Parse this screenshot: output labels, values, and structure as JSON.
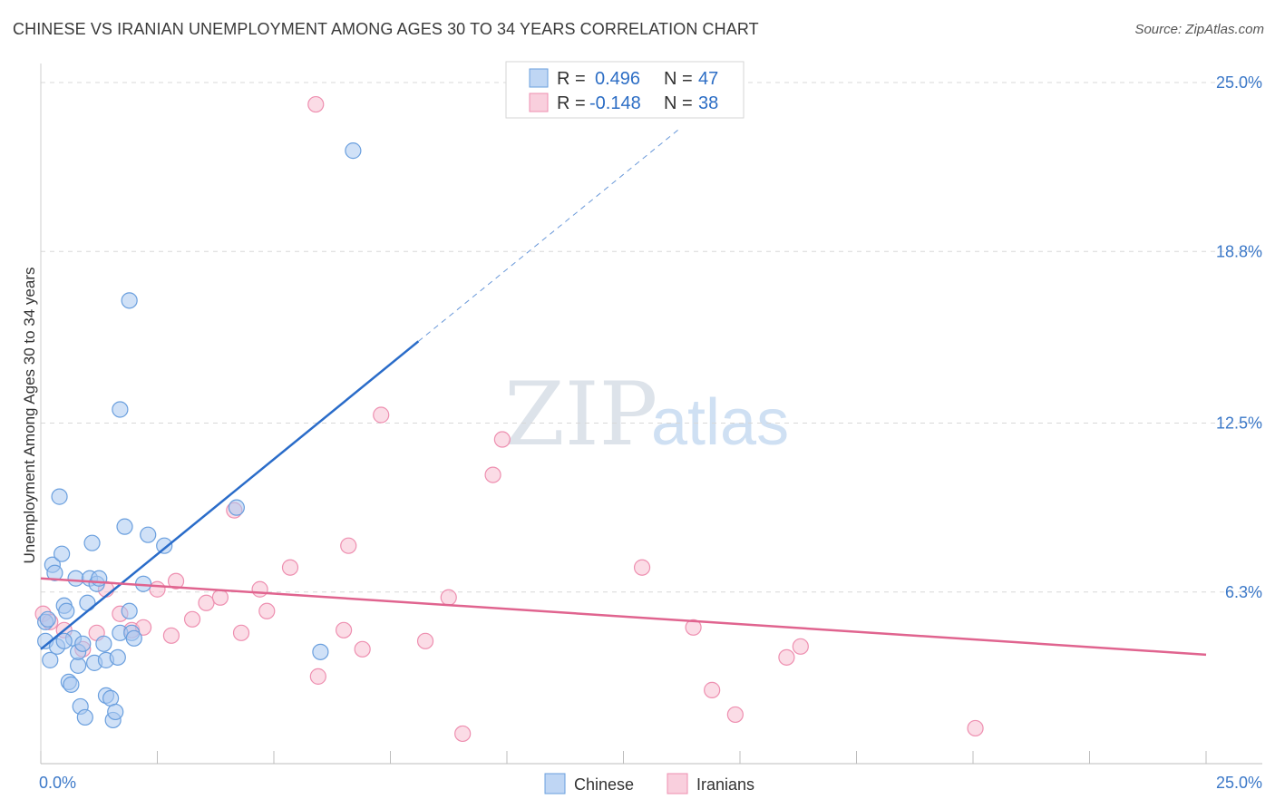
{
  "title": "CHINESE VS IRANIAN UNEMPLOYMENT AMONG AGES 30 TO 34 YEARS CORRELATION CHART",
  "source": "Source: ZipAtlas.com",
  "watermark": {
    "zip": "ZIP",
    "atlas": "atlas"
  },
  "colors": {
    "chinese_fill": "#a9c8f0",
    "chinese_stroke": "#6a9fde",
    "chinese_line": "#2a6cc9",
    "iranian_fill": "#f7bfd2",
    "iranian_stroke": "#ee8fb0",
    "iranian_line": "#e0648f",
    "grid": "#d8d8d8",
    "axis_label": "#3b78c8"
  },
  "legend_box": {
    "rows": [
      {
        "r_label": "R =",
        "r_value": "0.496",
        "n_label": "N =",
        "n_value": "47",
        "series": "chinese"
      },
      {
        "r_label": "R =",
        "r_value": "-0.148",
        "n_label": "N =",
        "n_value": "38",
        "series": "iranian"
      }
    ]
  },
  "chart_data": {
    "type": "scatter",
    "title": "CHINESE VS IRANIAN UNEMPLOYMENT AMONG AGES 30 TO 34 YEARS CORRELATION CHART",
    "xlabel": "",
    "ylabel": "Unemployment Among Ages 30 to 34 years",
    "xlim": [
      0,
      25
    ],
    "ylim": [
      0,
      25.7
    ],
    "x_tick_labels": [
      "0.0%",
      "25.0%"
    ],
    "y_ticks": [
      {
        "value": 6.3,
        "label": "6.3%"
      },
      {
        "value": 12.5,
        "label": "12.5%"
      },
      {
        "value": 18.8,
        "label": "18.8%"
      },
      {
        "value": 25.0,
        "label": "25.0%"
      }
    ],
    "grid": "horizontal dashed",
    "legend": [
      "Chinese",
      "Iranians"
    ],
    "series": [
      {
        "name": "Chinese",
        "points": [
          [
            0.1,
            4.5
          ],
          [
            0.1,
            5.2
          ],
          [
            0.15,
            5.3
          ],
          [
            0.2,
            3.8
          ],
          [
            0.25,
            7.3
          ],
          [
            0.3,
            7.0
          ],
          [
            0.35,
            4.3
          ],
          [
            0.4,
            9.8
          ],
          [
            0.45,
            7.7
          ],
          [
            0.5,
            5.8
          ],
          [
            0.55,
            5.6
          ],
          [
            0.6,
            3.0
          ],
          [
            0.65,
            2.9
          ],
          [
            0.7,
            4.6
          ],
          [
            0.75,
            6.8
          ],
          [
            0.8,
            3.6
          ],
          [
            0.8,
            4.1
          ],
          [
            0.85,
            2.1
          ],
          [
            0.95,
            1.7
          ],
          [
            1.0,
            5.9
          ],
          [
            1.05,
            6.8
          ],
          [
            1.1,
            8.1
          ],
          [
            1.15,
            3.7
          ],
          [
            1.2,
            6.6
          ],
          [
            1.25,
            6.8
          ],
          [
            1.35,
            4.4
          ],
          [
            1.4,
            3.8
          ],
          [
            1.4,
            2.5
          ],
          [
            1.5,
            2.4
          ],
          [
            1.55,
            1.6
          ],
          [
            1.6,
            1.9
          ],
          [
            1.65,
            3.9
          ],
          [
            1.7,
            4.8
          ],
          [
            1.7,
            13.0
          ],
          [
            1.8,
            8.7
          ],
          [
            1.9,
            5.6
          ],
          [
            1.9,
            17.0
          ],
          [
            1.95,
            4.8
          ],
          [
            2.0,
            4.6
          ],
          [
            2.2,
            6.6
          ],
          [
            2.3,
            8.4
          ],
          [
            2.65,
            8.0
          ],
          [
            4.2,
            9.4
          ],
          [
            6.0,
            4.1
          ],
          [
            6.7,
            22.5
          ],
          [
            0.5,
            4.5
          ],
          [
            0.9,
            4.4
          ]
        ],
        "trend": {
          "x0": 0,
          "y0": 4.2,
          "x1": 8.1,
          "y1": 15.5,
          "dashed_to": {
            "x": 13.7,
            "y": 23.3
          }
        }
      },
      {
        "name": "Iranians",
        "points": [
          [
            0.05,
            5.5
          ],
          [
            0.2,
            5.2
          ],
          [
            0.5,
            4.9
          ],
          [
            0.9,
            4.2
          ],
          [
            1.2,
            4.8
          ],
          [
            1.4,
            6.4
          ],
          [
            1.7,
            5.5
          ],
          [
            1.95,
            4.9
          ],
          [
            2.2,
            5.0
          ],
          [
            2.5,
            6.4
          ],
          [
            2.8,
            4.7
          ],
          [
            2.9,
            6.7
          ],
          [
            3.25,
            5.3
          ],
          [
            3.55,
            5.9
          ],
          [
            3.85,
            6.1
          ],
          [
            4.15,
            9.3
          ],
          [
            4.3,
            4.8
          ],
          [
            4.7,
            6.4
          ],
          [
            4.85,
            5.6
          ],
          [
            5.35,
            7.2
          ],
          [
            5.9,
            24.2
          ],
          [
            5.95,
            3.2
          ],
          [
            6.5,
            4.9
          ],
          [
            6.6,
            8.0
          ],
          [
            6.9,
            4.2
          ],
          [
            7.3,
            12.8
          ],
          [
            8.25,
            4.5
          ],
          [
            8.75,
            6.1
          ],
          [
            9.05,
            1.1
          ],
          [
            9.7,
            10.6
          ],
          [
            9.9,
            11.9
          ],
          [
            12.9,
            7.2
          ],
          [
            14.0,
            5.0
          ],
          [
            14.4,
            2.7
          ],
          [
            14.9,
            1.8
          ],
          [
            16.0,
            3.9
          ],
          [
            16.3,
            4.3
          ],
          [
            20.05,
            1.3
          ]
        ],
        "trend": {
          "x0": 0,
          "y0": 6.8,
          "x1": 25.0,
          "y1": 4.0
        }
      }
    ]
  }
}
